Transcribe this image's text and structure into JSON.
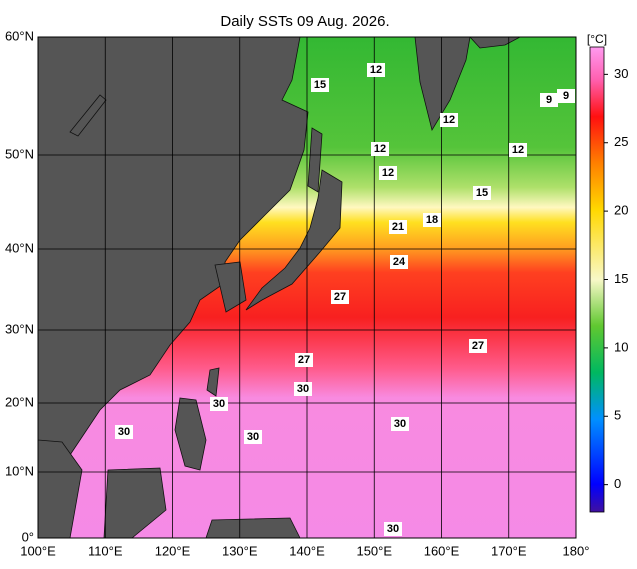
{
  "title": "Daily SSTs 09 Aug. 2026.",
  "axes": {
    "x_ticks": [
      "100°E",
      "110°E",
      "120°E",
      "130°E",
      "140°E",
      "150°E",
      "160°E",
      "170°E",
      "180°"
    ],
    "y_ticks": [
      "0°",
      "10°N",
      "20°N",
      "30°N",
      "40°N",
      "50°N",
      "60°N"
    ]
  },
  "colorbar": {
    "unit": "[°C]",
    "range": [
      -2,
      32
    ],
    "ticks": [
      0,
      5,
      10,
      15,
      20,
      25,
      30
    ]
  },
  "contour_labels": [
    "12",
    "15",
    "12",
    "9",
    "9",
    "12",
    "12",
    "12",
    "15",
    "18",
    "21",
    "24",
    "27",
    "27",
    "27",
    "30",
    "30",
    "30",
    "30",
    "30",
    "30"
  ]
}
